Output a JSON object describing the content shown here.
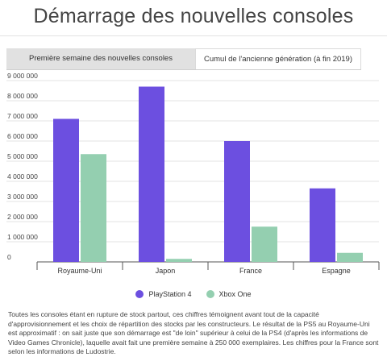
{
  "title": "Démarrage des nouvelles consoles",
  "tabs": [
    {
      "label": "Première semaine des nouvelles consoles",
      "active": false
    },
    {
      "label": "Cumul de l'ancienne génération (à fin 2019)",
      "active": true
    }
  ],
  "colors": {
    "ps4": "#6c4fe0",
    "xbox": "#94cfb0"
  },
  "chart_data": {
    "type": "bar",
    "categories": [
      "Royaume-Uni",
      "Japon",
      "France",
      "Espagne"
    ],
    "series": [
      {
        "name": "PlayStation 4",
        "values": [
          7100000,
          8700000,
          6000000,
          3650000
        ]
      },
      {
        "name": "Xbox One",
        "values": [
          5350000,
          150000,
          1750000,
          450000
        ]
      }
    ],
    "ylim": [
      0,
      9000000
    ],
    "yticks": [
      0,
      1000000,
      2000000,
      3000000,
      4000000,
      5000000,
      6000000,
      7000000,
      8000000,
      9000000
    ],
    "ytick_labels": [
      "0",
      "1 000 000",
      "2 000 000",
      "3 000 000",
      "4 000 000",
      "5 000 000",
      "6 000 000",
      "7 000 000",
      "8 000 000",
      "9 000 000"
    ],
    "grid": true,
    "legend_position": "bottom"
  },
  "legend": [
    "PlayStation 4",
    "Xbox One"
  ],
  "note": "Toutes les consoles étant en rupture de stock partout, ces chiffres témoignent avant tout de la capacité d'approvisionnement et les choix de répartition des stocks par les constructeurs. Le résultat de la PS5 au Royaume-Uni est approximatif : on sait juste que son démarrage est \"de loin\" supérieur à celui de la PS4 (d'après les informations de Video Games Chronicle), laquelle avait fait une première semaine à 250 000 exemplaires. Les chiffres pour la France sont selon les informations de Ludostrie."
}
